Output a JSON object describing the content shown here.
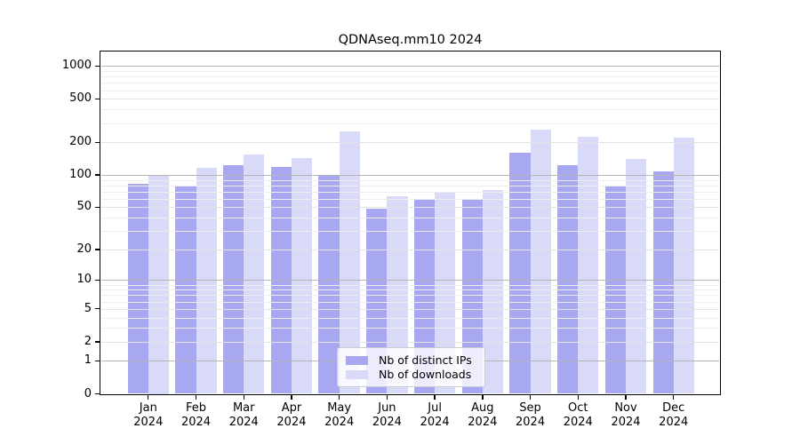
{
  "title": "QDNAseq.mm10 2024",
  "legend": {
    "items": [
      {
        "label": "Nb of distinct IPs",
        "color": "#a7a7f2"
      },
      {
        "label": "Nb of downloads",
        "color": "#d9d9f8"
      }
    ]
  },
  "chart_data": {
    "type": "bar",
    "title": "QDNAseq.mm10 2024",
    "categories": [
      "Jan 2024",
      "Feb 2024",
      "Mar 2024",
      "Apr 2024",
      "May 2024",
      "Jun 2024",
      "Jul 2024",
      "Aug 2024",
      "Sep 2024",
      "Oct 2024",
      "Nov 2024",
      "Dec 2024"
    ],
    "series": [
      {
        "name": "Nb of distinct IPs",
        "color": "#a7a7f2",
        "values": [
          82,
          78,
          122,
          118,
          98,
          49,
          60,
          59,
          160,
          124,
          80,
          108
        ]
      },
      {
        "name": "Nb of downloads",
        "color": "#d9d9f8",
        "values": [
          99,
          116,
          155,
          142,
          252,
          63,
          69,
          72,
          259,
          225,
          140,
          220
        ]
      }
    ],
    "yscale": "log1p",
    "yticks": [
      0,
      1,
      2,
      5,
      10,
      20,
      50,
      100,
      200,
      500,
      1000
    ],
    "ylim": [
      0,
      1000
    ],
    "grid": true,
    "legend_position": "lower center inside"
  },
  "colors": {
    "grid_decade": "#b5b5b5",
    "grid_labeled": "#e3e3e3",
    "grid_minor": "#eeeeee",
    "axis": "#000000",
    "background": "#ffffff"
  }
}
